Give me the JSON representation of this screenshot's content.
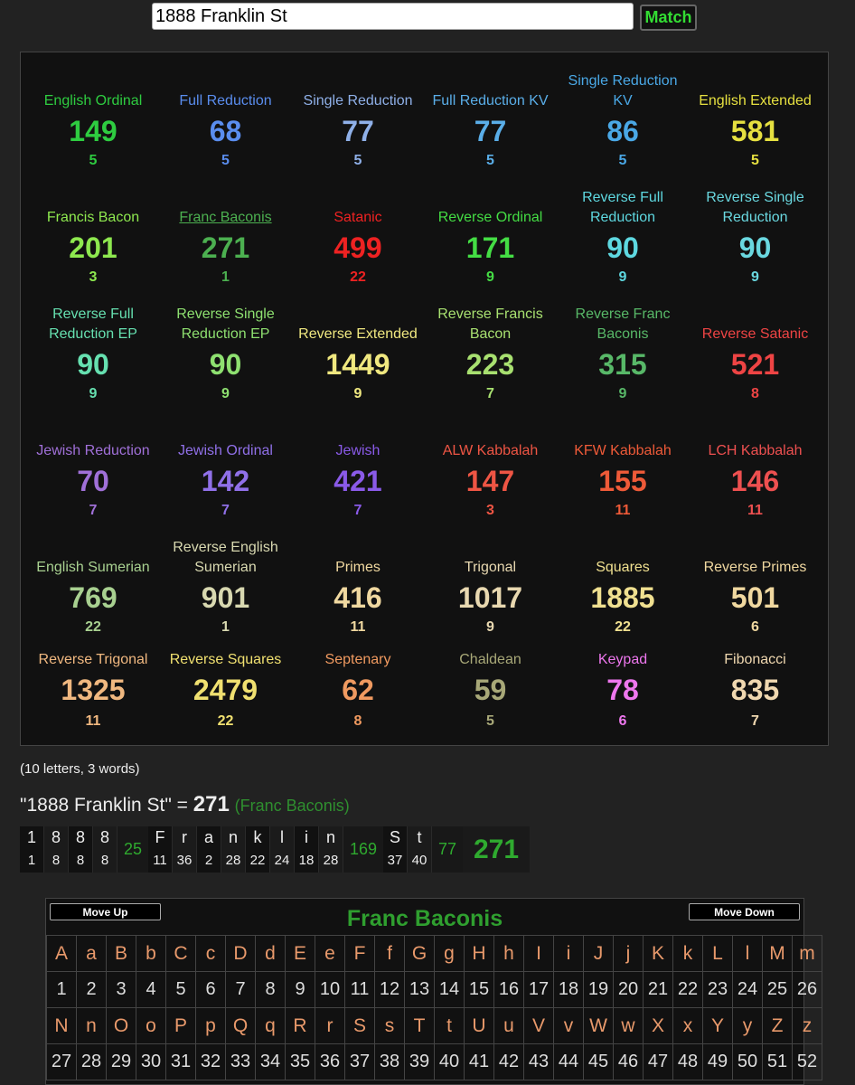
{
  "search": {
    "value": "1888 Franklin St",
    "button_label": "Match"
  },
  "ciphers": [
    {
      "name": "English Ordinal",
      "value": "149",
      "reduction": "5",
      "color": "#2ecc40"
    },
    {
      "name": "Full Reduction",
      "value": "68",
      "reduction": "5",
      "color": "#5a8dee"
    },
    {
      "name": "Single Reduction",
      "value": "77",
      "reduction": "5",
      "color": "#8fb0e8"
    },
    {
      "name": "Full Reduction KV",
      "value": "77",
      "reduction": "5",
      "color": "#5aaee8"
    },
    {
      "name": "Single Reduction KV",
      "value": "86",
      "reduction": "5",
      "color": "#4aa8e6"
    },
    {
      "name": "English Extended",
      "value": "581",
      "reduction": "5",
      "color": "#e6e040"
    },
    {
      "name": "Francis Bacon",
      "value": "201",
      "reduction": "3",
      "color": "#8ee84f"
    },
    {
      "name": "Franc Baconis",
      "value": "271",
      "reduction": "1",
      "color": "#4cb050"
    },
    {
      "name": "Satanic",
      "value": "499",
      "reduction": "22",
      "color": "#ee2222"
    },
    {
      "name": "Reverse Ordinal",
      "value": "171",
      "reduction": "9",
      "color": "#44dd44"
    },
    {
      "name": "Reverse Full Reduction",
      "value": "90",
      "reduction": "9",
      "color": "#5ed8e0"
    },
    {
      "name": "Reverse Single Reduction",
      "value": "90",
      "reduction": "9",
      "color": "#6ad8e0"
    },
    {
      "name": "Reverse Full Reduction EP",
      "value": "90",
      "reduction": "9",
      "color": "#66e0b0"
    },
    {
      "name": "Reverse Single Reduction EP",
      "value": "90",
      "reduction": "9",
      "color": "#8ee070"
    },
    {
      "name": "Reverse Extended",
      "value": "1449",
      "reduction": "9",
      "color": "#f0e880"
    },
    {
      "name": "Reverse Francis Bacon",
      "value": "223",
      "reduction": "7",
      "color": "#a8e070"
    },
    {
      "name": "Reverse Franc Baconis",
      "value": "315",
      "reduction": "9",
      "color": "#58b868"
    },
    {
      "name": "Reverse Satanic",
      "value": "521",
      "reduction": "8",
      "color": "#ee4444"
    },
    {
      "name": "Jewish Reduction",
      "value": "70",
      "reduction": "7",
      "color": "#a070d8"
    },
    {
      "name": "Jewish Ordinal",
      "value": "142",
      "reduction": "7",
      "color": "#9070e8"
    },
    {
      "name": "Jewish",
      "value": "421",
      "reduction": "7",
      "color": "#8a5ae8"
    },
    {
      "name": "ALW Kabbalah",
      "value": "147",
      "reduction": "3",
      "color": "#ee5544"
    },
    {
      "name": "KFW Kabbalah",
      "value": "155",
      "reduction": "11",
      "color": "#ee5a38"
    },
    {
      "name": "LCH Kabbalah",
      "value": "146",
      "reduction": "11",
      "color": "#ee5050"
    },
    {
      "name": "English Sumerian",
      "value": "769",
      "reduction": "22",
      "color": "#a8d090"
    },
    {
      "name": "Reverse English Sumerian",
      "value": "901",
      "reduction": "1",
      "color": "#d8d8b0"
    },
    {
      "name": "Primes",
      "value": "416",
      "reduction": "11",
      "color": "#f0d8a0"
    },
    {
      "name": "Trigonal",
      "value": "1017",
      "reduction": "9",
      "color": "#e8d8b0"
    },
    {
      "name": "Squares",
      "value": "1885",
      "reduction": "22",
      "color": "#f0e090"
    },
    {
      "name": "Reverse Primes",
      "value": "501",
      "reduction": "6",
      "color": "#f0d8a0"
    },
    {
      "name": "Reverse Trigonal",
      "value": "1325",
      "reduction": "11",
      "color": "#f0b880"
    },
    {
      "name": "Reverse Squares",
      "value": "2479",
      "reduction": "22",
      "color": "#f0e070"
    },
    {
      "name": "Septenary",
      "value": "62",
      "reduction": "8",
      "color": "#f09a60"
    },
    {
      "name": "Chaldean",
      "value": "59",
      "reduction": "5",
      "color": "#a8a878"
    },
    {
      "name": "Keypad",
      "value": "78",
      "reduction": "6",
      "color": "#ee77ee"
    },
    {
      "name": "Fibonacci",
      "value": "835",
      "reduction": "7",
      "color": "#f0d8b0"
    }
  ],
  "summary": {
    "info": "(10 letters, 3 words)",
    "phrase": "\"1888 Franklin St\"",
    "equals": " = ",
    "total": "271",
    "cipher_name": "(Franc Baconis)"
  },
  "breakdown": {
    "words": [
      {
        "chars": [
          {
            "l": "1",
            "n": "1"
          },
          {
            "l": "8",
            "n": "8"
          },
          {
            "l": "8",
            "n": "8"
          },
          {
            "l": "8",
            "n": "8"
          }
        ],
        "sum": "25"
      },
      {
        "chars": [
          {
            "l": "F",
            "n": "11"
          },
          {
            "l": "r",
            "n": "36"
          },
          {
            "l": "a",
            "n": "2"
          },
          {
            "l": "n",
            "n": "28"
          },
          {
            "l": "k",
            "n": "22"
          },
          {
            "l": "l",
            "n": "24"
          },
          {
            "l": "i",
            "n": "18"
          },
          {
            "l": "n",
            "n": "28"
          }
        ],
        "sum": "169"
      },
      {
        "chars": [
          {
            "l": "S",
            "n": "37"
          },
          {
            "l": "t",
            "n": "40"
          }
        ],
        "sum": "77"
      }
    ],
    "total": "271"
  },
  "cipher_chart": {
    "title": "Franc Baconis",
    "move_up": "Move Up",
    "move_down": "Move Down",
    "row1_letters": [
      "A",
      "a",
      "B",
      "b",
      "C",
      "c",
      "D",
      "d",
      "E",
      "e",
      "F",
      "f",
      "G",
      "g",
      "H",
      "h",
      "I",
      "i",
      "J",
      "j",
      "K",
      "k",
      "L",
      "l",
      "M",
      "m"
    ],
    "row1_values": [
      "1",
      "2",
      "3",
      "4",
      "5",
      "6",
      "7",
      "8",
      "9",
      "10",
      "11",
      "12",
      "13",
      "14",
      "15",
      "16",
      "17",
      "18",
      "19",
      "20",
      "21",
      "22",
      "23",
      "24",
      "25",
      "26"
    ],
    "row2_letters": [
      "N",
      "n",
      "O",
      "o",
      "P",
      "p",
      "Q",
      "q",
      "R",
      "r",
      "S",
      "s",
      "T",
      "t",
      "U",
      "u",
      "V",
      "v",
      "W",
      "w",
      "X",
      "x",
      "Y",
      "y",
      "Z",
      "z"
    ],
    "row2_values": [
      "27",
      "28",
      "29",
      "30",
      "31",
      "32",
      "33",
      "34",
      "35",
      "36",
      "37",
      "38",
      "39",
      "40",
      "41",
      "42",
      "43",
      "44",
      "45",
      "46",
      "47",
      "48",
      "49",
      "50",
      "51",
      "52"
    ]
  }
}
